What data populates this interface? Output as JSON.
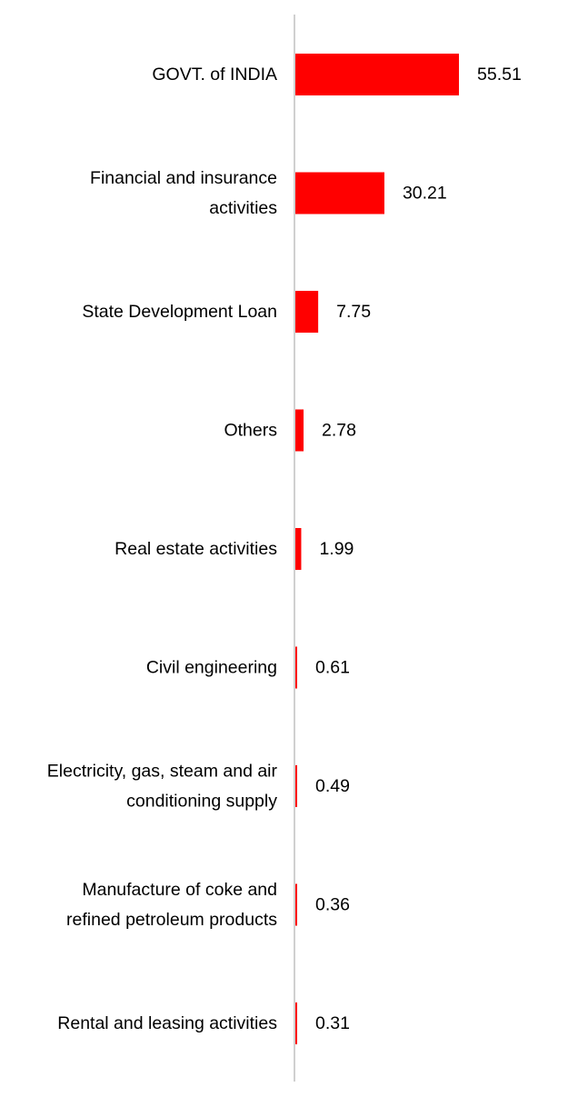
{
  "chart_data": {
    "type": "bar",
    "orientation": "horizontal",
    "categories": [
      "GOVT. of INDIA",
      "Financial and insurance activities",
      "State Development Loan",
      "Others",
      "Real estate activities",
      "Civil engineering",
      "Electricity, gas, steam and air conditioning supply",
      "Manufacture of coke and refined petroleum products",
      "Rental and leasing activities"
    ],
    "category_lines": [
      [
        "GOVT. of INDIA"
      ],
      [
        "Financial and insurance",
        "activities"
      ],
      [
        "State Development Loan"
      ],
      [
        "Others"
      ],
      [
        "Real estate activities"
      ],
      [
        "Civil engineering"
      ],
      [
        "Electricity, gas, steam and air",
        "conditioning supply"
      ],
      [
        "Manufacture of coke and",
        "refined petroleum products"
      ],
      [
        "Rental and leasing activities"
      ]
    ],
    "values": [
      55.51,
      30.21,
      7.75,
      2.78,
      1.99,
      0.61,
      0.49,
      0.36,
      0.31
    ],
    "value_labels": [
      "55.51",
      "30.21",
      "7.75",
      "2.78",
      "1.99",
      "0.61",
      "0.49",
      "0.36",
      "0.31"
    ],
    "title": "",
    "xlabel": "",
    "ylabel": "",
    "xlim": [
      0,
      60
    ],
    "grid": false,
    "legend": "none",
    "bar_color": "#ff0000",
    "axis_color": "#d0d0d0"
  }
}
